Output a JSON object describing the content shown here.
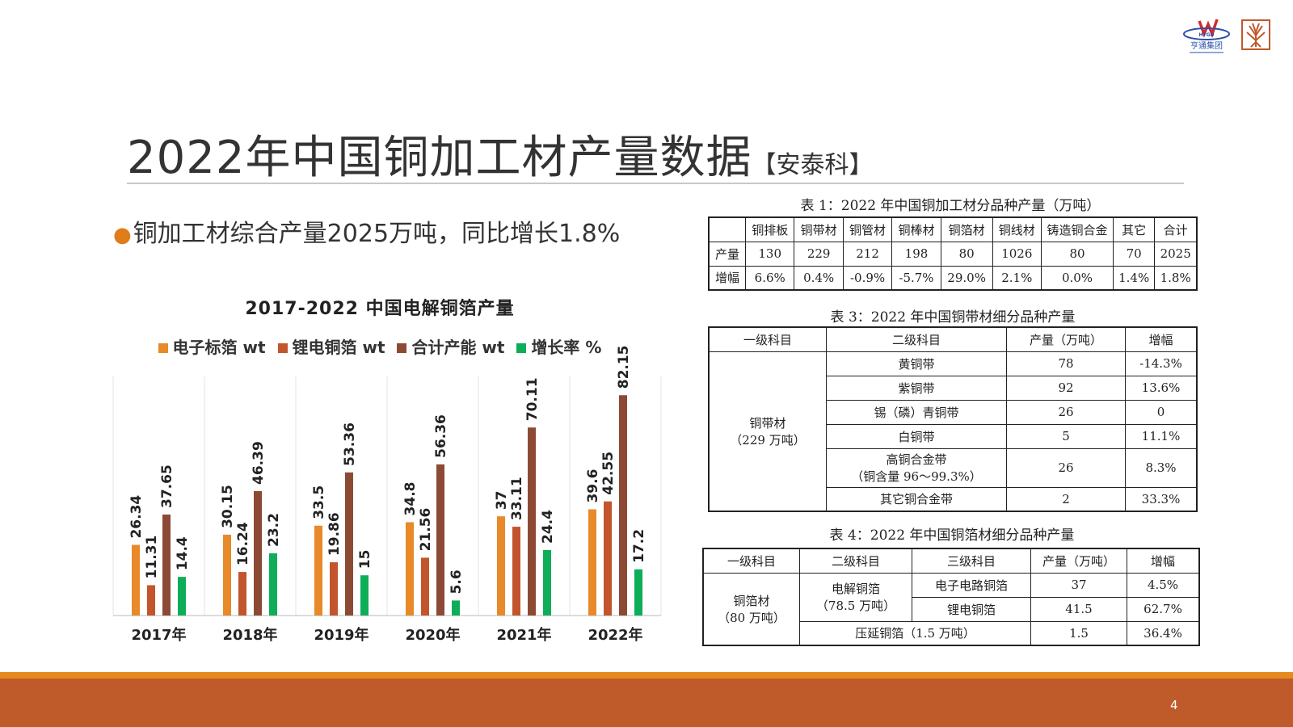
{
  "logos": {
    "group_logo_text": "亨通集团",
    "group_logo_brand": "HTGD"
  },
  "slide": {
    "title_main": "2022年中国铜加工材产量数据",
    "title_source": "【安泰科】",
    "bullet": "铜加工材综合产量2025万吨，同比增长1.8%",
    "page_number": "4"
  },
  "colors": {
    "series_orange": "#e8892a",
    "series_rust": "#c2552c",
    "series_brown": "#8c4a35",
    "series_green": "#0ead58",
    "footer_orange": "#e68a1e",
    "footer_band": "#bf5a2b"
  },
  "chart_data": {
    "type": "bar",
    "title": "2017-2022 中国电解铜箔产量",
    "categories": [
      "2017年",
      "2018年",
      "2019年",
      "2020年",
      "2021年",
      "2022年"
    ],
    "series": [
      {
        "name": "电子标箔 wt",
        "color": "#e8892a",
        "values": [
          26.34,
          30.15,
          33.5,
          34.8,
          37,
          39.6
        ],
        "labels": [
          "26.34",
          "30.15",
          "33.5",
          "34.8",
          "37",
          "39.6"
        ]
      },
      {
        "name": "锂电铜箔 wt",
        "color": "#c2552c",
        "values": [
          11.31,
          16.24,
          19.86,
          21.56,
          33.11,
          42.55
        ],
        "labels": [
          "11.31",
          "16.24",
          "19.86",
          "21.56",
          "33.11",
          "42.55"
        ]
      },
      {
        "name": "合计产能 wt",
        "color": "#8c4a35",
        "values": [
          37.65,
          46.39,
          53.36,
          56.36,
          70.11,
          82.15
        ],
        "labels": [
          "37.65",
          "46.39",
          "53.36",
          "56.36",
          "70.11",
          "82.15"
        ]
      },
      {
        "name": "增长率 %",
        "color": "#0ead58",
        "values": [
          14.4,
          23.2,
          15,
          5.6,
          24.4,
          17.2
        ],
        "labels": [
          "14.4",
          "23.2",
          "15",
          "5.6",
          "24.4",
          "17.2"
        ]
      }
    ],
    "ylim": [
      0,
      82.15
    ],
    "grid": false,
    "legend": "top"
  },
  "table1": {
    "caption": "表 1：2022 年中国铜加工材分品种产量（万吨）",
    "headers": [
      "",
      "铜排板",
      "铜带材",
      "铜管材",
      "铜棒材",
      "铜箔材",
      "铜线材",
      "铸造铜合金",
      "其它",
      "合计"
    ],
    "rows": [
      [
        "产量",
        "130",
        "229",
        "212",
        "198",
        "80",
        "1026",
        "80",
        "70",
        "2025"
      ],
      [
        "增幅",
        "6.6%",
        "0.4%",
        "-0.9%",
        "-5.7%",
        "29.0%",
        "2.1%",
        "0.0%",
        "1.4%",
        "1.8%"
      ]
    ]
  },
  "table3": {
    "caption": "表 3：2022 年中国铜带材细分品种产量",
    "headers": [
      "一级科目",
      "二级科目",
      "产量（万吨）",
      "增幅"
    ],
    "group_label_1": "铜带材",
    "group_label_2": "（229 万吨）",
    "rows": [
      {
        "name": "黄铜带",
        "name2": "",
        "value": "78",
        "growth": "-14.3%"
      },
      {
        "name": "紫铜带",
        "name2": "",
        "value": "92",
        "growth": "13.6%"
      },
      {
        "name": "锡（磷）青铜带",
        "name2": "",
        "value": "26",
        "growth": "0"
      },
      {
        "name": "白铜带",
        "name2": "",
        "value": "5",
        "growth": "11.1%"
      },
      {
        "name": "高铜合金带",
        "name2": "（铜含量 96～99.3%）",
        "value": "26",
        "growth": "8.3%"
      },
      {
        "name": "其它铜合金带",
        "name2": "",
        "value": "2",
        "growth": "33.3%"
      }
    ]
  },
  "table4": {
    "caption": "表 4：2022 年中国铜箔材细分品种产量",
    "headers": [
      "一级科目",
      "二级科目",
      "三级科目",
      "产量（万吨）",
      "增幅"
    ],
    "group_label_1": "铜箔材",
    "group_label_2": "（80 万吨）",
    "sub_label_1": "电解铜箔",
    "sub_label_2": "（78.5 万吨）",
    "rows": [
      {
        "name": "电子电路铜箔",
        "value": "37",
        "growth": "4.5%"
      },
      {
        "name": "锂电铜箔",
        "value": "41.5",
        "growth": "62.7%"
      }
    ],
    "last_row": {
      "name": "压延铜箔（1.5 万吨）",
      "value": "1.5",
      "growth": "36.4%"
    }
  }
}
